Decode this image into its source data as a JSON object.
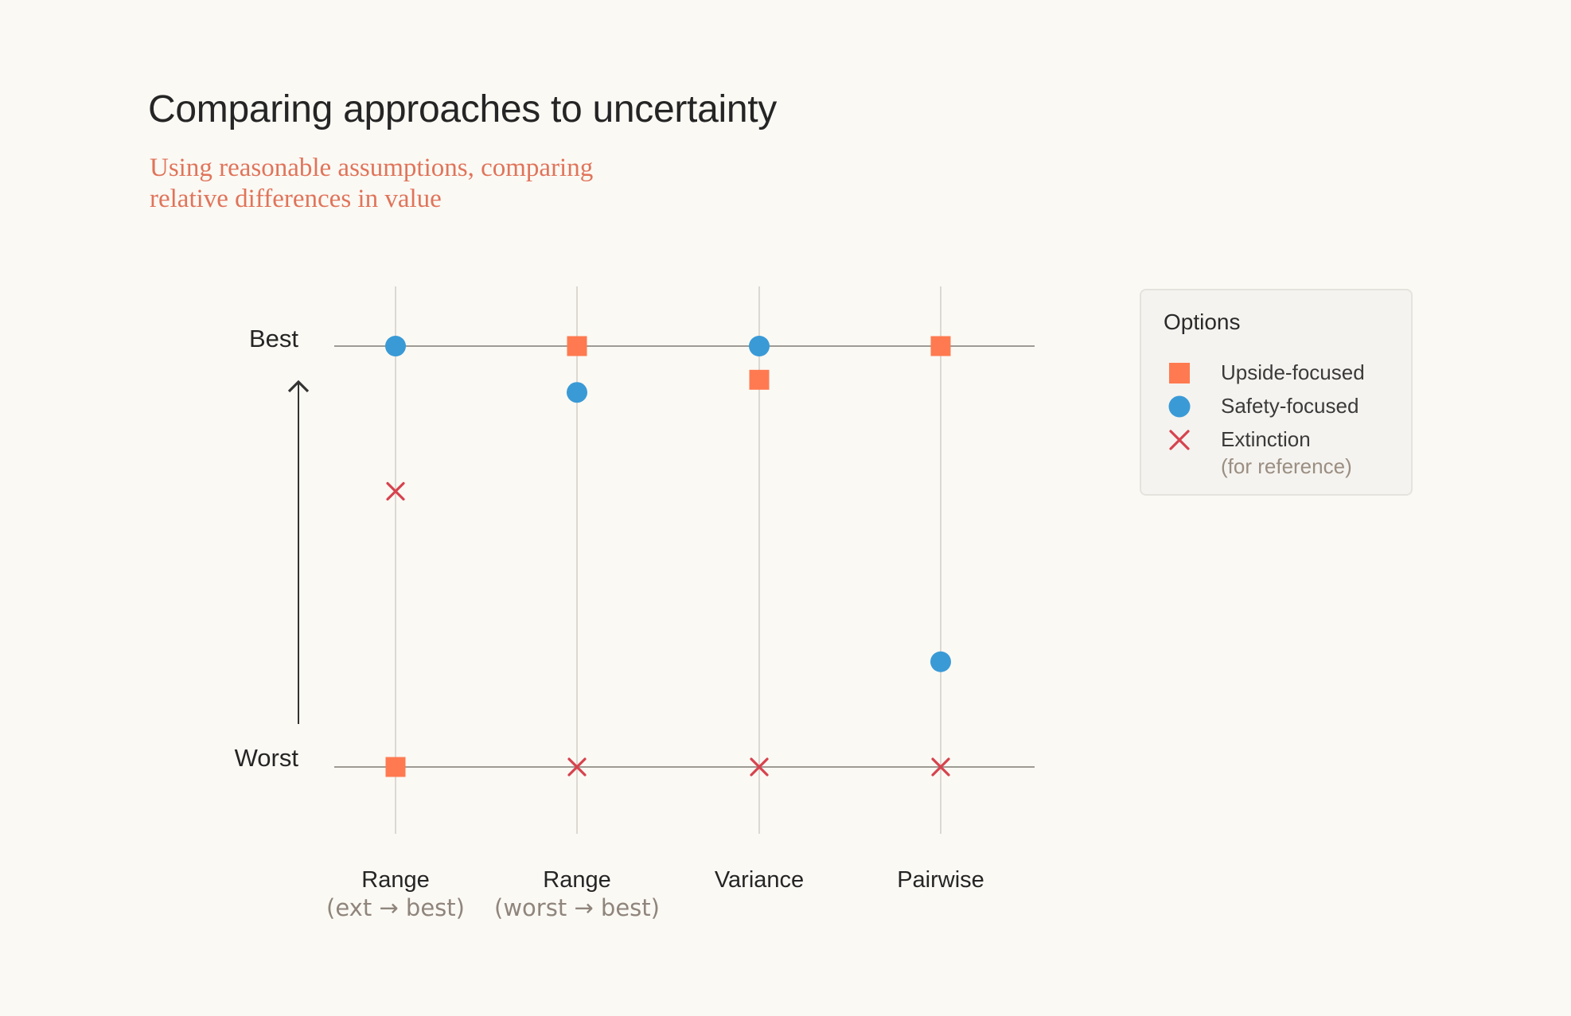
{
  "title": "Comparing approaches to uncertainty",
  "subtitle_lines": [
    "Using reasonable assumptions, comparing",
    "relative differences in value"
  ],
  "colors": {
    "upside": "#ff7a50",
    "safety": "#3a9ad6",
    "extinction": "#d6434e",
    "text": "#252525",
    "muted": "#8f857c"
  },
  "legend": {
    "title": "Options",
    "items": [
      {
        "label": "Upside-focused",
        "marker": "square",
        "color": "#ff7a50"
      },
      {
        "label": "Safety-focused",
        "marker": "circle",
        "color": "#3a9ad6"
      },
      {
        "label": "Extinction",
        "marker": "cross",
        "color": "#d6434e",
        "note": "(for reference)"
      }
    ]
  },
  "chart_data": {
    "type": "scatter",
    "title": "Comparing approaches to uncertainty",
    "subtitle": "Using reasonable assumptions, comparing relative differences in value",
    "y_axis": {
      "top_label": "Best",
      "bottom_label": "Worst",
      "range": [
        0,
        1
      ]
    },
    "categories": [
      {
        "label": "Range",
        "sublabel": "(ext → best)"
      },
      {
        "label": "Range",
        "sublabel": "(worst → best)"
      },
      {
        "label": "Variance",
        "sublabel": ""
      },
      {
        "label": "Pairwise",
        "sublabel": ""
      }
    ],
    "series": [
      {
        "name": "Upside-focused",
        "marker": "square",
        "color": "#ff7a50",
        "values": [
          0,
          1,
          0.92,
          1
        ]
      },
      {
        "name": "Safety-focused",
        "marker": "circle",
        "color": "#3a9ad6",
        "values": [
          1,
          0.89,
          1,
          0.25
        ]
      },
      {
        "name": "Extinction",
        "marker": "cross",
        "color": "#d6434e",
        "values": [
          0.655,
          0,
          0,
          0
        ]
      }
    ],
    "legend_position": "right"
  }
}
